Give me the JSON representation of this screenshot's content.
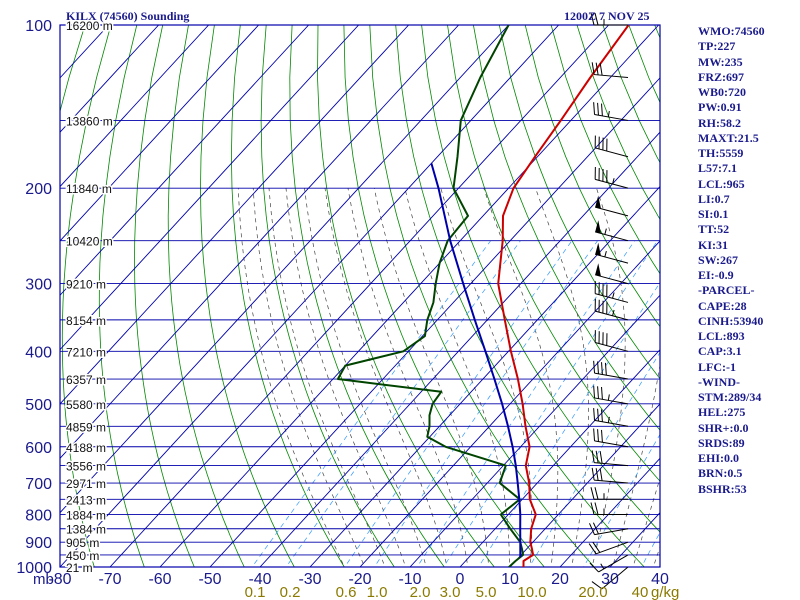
{
  "title": "KILX (74560) Sounding",
  "valid_time": "1200Z  7 NOV 25",
  "colors": {
    "frame": "#0000aa",
    "axis_text": "#1a1a8c",
    "temperature": "#cc0000",
    "dewpoint": "#004400",
    "parcel": "#0000aa",
    "dry_adiabat": "#008800",
    "moist_adiabat": "#444444",
    "mixing_ratio": "#3399ff",
    "mixing_label": "#8a7a00",
    "wind": "#000000"
  },
  "pressure_labels": [
    "100",
    "200",
    "300",
    "400",
    "500",
    "600",
    "700",
    "800",
    "900",
    "1000"
  ],
  "temp_ticks": [
    "-80",
    "-70",
    "-60",
    "-50",
    "-40",
    "-30",
    "-20",
    "-10",
    "0",
    "10",
    "20",
    "30",
    "40"
  ],
  "p_unit": "mb",
  "mixing_labels": [
    "0.1",
    "0.2",
    "0.6",
    "1.0",
    "2.0",
    "3.0",
    "5.0",
    "10.0",
    "20.0",
    "40"
  ],
  "mixing_unit": "g/kg",
  "height_labels": [
    "16200 m",
    "13860 m",
    "11840 m",
    "10420 m",
    "9210 m",
    "8154 m",
    "7210 m",
    "6357 m",
    "5580 m",
    "4859 m",
    "4188 m",
    "3556 m",
    "2971 m",
    "2413 m",
    "1884 m",
    "1384 m",
    "905 m",
    "450 m",
    "21 m"
  ],
  "indices": [
    "WMO:74560",
    "TP:227",
    "MW:235",
    "FRZ:697",
    "WB0:720",
    "PW:0.91",
    "RH:58.2",
    "MAXT:21.5",
    "TH:5559",
    "L57:7.1",
    "LCL:965",
    "LI:0.7",
    "SI:0.1",
    "TT:52",
    "KI:31",
    "SW:267",
    "EI:-0.9",
    "-PARCEL-",
    "CAPE:28",
    "CINH:53940",
    "LCL:893",
    "CAP:3.1",
    "LFC:-1",
    "-WIND-",
    "STM:289/34",
    "HEL:275",
    "SHR+:0.0",
    "SRDS:89",
    "EHI:0.0",
    "BRN:0.5",
    "BSHR:53"
  ],
  "chart_data": {
    "type": "line",
    "diagram": "skew-T log-P sounding",
    "x_range": [
      -80,
      40
    ],
    "pressure_range": [
      1000,
      100
    ],
    "height_level_pressures": [
      100,
      150,
      200,
      250,
      300,
      350,
      400,
      450,
      500,
      550,
      600,
      650,
      700,
      750,
      800,
      850,
      900,
      950,
      1000
    ],
    "mixing_ratio_values": [
      0.1,
      0.2,
      0.6,
      1.0,
      2.0,
      3.0,
      5.0,
      10.0,
      20.0,
      40.0
    ],
    "series": [
      {
        "name": "temperature",
        "points": [
          [
            1000,
            12.7
          ],
          [
            975,
            11.6
          ],
          [
            950,
            12.4
          ],
          [
            925,
            11.0
          ],
          [
            900,
            9.5
          ],
          [
            850,
            7.2
          ],
          [
            800,
            5.5
          ],
          [
            750,
            1.5
          ],
          [
            700,
            -1.6
          ],
          [
            650,
            -5.5
          ],
          [
            600,
            -8.2
          ],
          [
            550,
            -12.8
          ],
          [
            500,
            -17.5
          ],
          [
            450,
            -23.0
          ],
          [
            400,
            -29.5
          ],
          [
            350,
            -36.5
          ],
          [
            300,
            -44.5
          ],
          [
            250,
            -51.5
          ],
          [
            225,
            -56.0
          ],
          [
            200,
            -59.0
          ],
          [
            175,
            -60.5
          ],
          [
            150,
            -62.0
          ],
          [
            125,
            -64.0
          ],
          [
            100,
            -66.0
          ]
        ]
      },
      {
        "name": "dewpoint",
        "points": [
          [
            1000,
            9.8
          ],
          [
            975,
            10.0
          ],
          [
            950,
            10.4
          ],
          [
            925,
            9.0
          ],
          [
            900,
            7.5
          ],
          [
            850,
            3.0
          ],
          [
            800,
            -1.5
          ],
          [
            750,
            -0.5
          ],
          [
            700,
            -7.5
          ],
          [
            650,
            -9.5
          ],
          [
            600,
            -25.0
          ],
          [
            575,
            -30.5
          ],
          [
            550,
            -32.0
          ],
          [
            525,
            -34.0
          ],
          [
            500,
            -35.5
          ],
          [
            475,
            -36.0
          ],
          [
            450,
            -59.0
          ],
          [
            425,
            -60.0
          ],
          [
            400,
            -51.0
          ],
          [
            375,
            -49.5
          ],
          [
            350,
            -52.0
          ],
          [
            325,
            -54.0
          ],
          [
            300,
            -57.0
          ],
          [
            275,
            -60.0
          ],
          [
            250,
            -62.5
          ],
          [
            225,
            -63.0
          ],
          [
            200,
            -71.0
          ],
          [
            175,
            -76.0
          ],
          [
            150,
            -82.0
          ],
          [
            125,
            -86.0
          ],
          [
            100,
            -90.0
          ]
        ]
      },
      {
        "name": "parcel",
        "points": [
          [
            960,
            10.3
          ],
          [
            900,
            7.5
          ],
          [
            850,
            5.0
          ],
          [
            800,
            2.4
          ],
          [
            750,
            -0.6
          ],
          [
            700,
            -3.9
          ],
          [
            650,
            -7.5
          ],
          [
            600,
            -11.6
          ],
          [
            550,
            -16.3
          ],
          [
            500,
            -21.6
          ],
          [
            450,
            -27.7
          ],
          [
            400,
            -34.6
          ],
          [
            350,
            -42.5
          ],
          [
            300,
            -51.5
          ],
          [
            250,
            -62.0
          ],
          [
            200,
            -74.0
          ],
          [
            180,
            -80.0
          ]
        ]
      }
    ],
    "wind_barbs": [
      [
        100,
        270,
        25
      ],
      [
        125,
        275,
        30
      ],
      [
        150,
        280,
        35
      ],
      [
        175,
        285,
        40
      ],
      [
        200,
        285,
        45
      ],
      [
        225,
        285,
        50
      ],
      [
        250,
        285,
        55
      ],
      [
        275,
        285,
        55
      ],
      [
        300,
        285,
        50
      ],
      [
        325,
        285,
        45
      ],
      [
        350,
        285,
        45
      ],
      [
        400,
        285,
        40
      ],
      [
        450,
        280,
        40
      ],
      [
        500,
        280,
        35
      ],
      [
        550,
        280,
        35
      ],
      [
        600,
        280,
        30
      ],
      [
        650,
        275,
        30
      ],
      [
        700,
        275,
        30
      ],
      [
        750,
        270,
        25
      ],
      [
        800,
        270,
        25
      ],
      [
        850,
        260,
        20
      ],
      [
        900,
        250,
        20
      ],
      [
        950,
        240,
        15
      ],
      [
        1000,
        230,
        10
      ]
    ]
  }
}
